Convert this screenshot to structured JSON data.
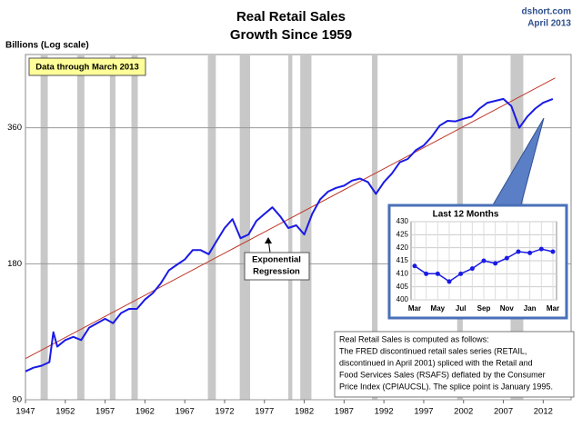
{
  "chart_data": [
    {
      "type": "line",
      "title": "Real Retail Sales",
      "subtitle": "Growth Since 1959",
      "source": [
        "dshort.com",
        "April 2013"
      ],
      "y_label": "Billions (Log scale)",
      "badge": "Data through March 2013",
      "regression_label": [
        "Exponential",
        "Regression"
      ],
      "note": [
        "Real Retail Sales is computed as follows:",
        "The FRED discontinued retail sales series (RETAIL,",
        "discontinued in April 2001) spliced with the Retail and",
        "Food Services Sales (RSAFS) deflated by the Consumer",
        "Price Index (CPIAUCSL). The splice point is January 1995."
      ],
      "log_scale": true,
      "xlim": [
        1947,
        2015.5
      ],
      "xticks": [
        1947,
        1952,
        1957,
        1962,
        1967,
        1972,
        1977,
        1982,
        1987,
        1992,
        1997,
        2002,
        2007,
        2012
      ],
      "ylim": [
        90,
        523
      ],
      "yticks": [
        90,
        180,
        360
      ],
      "grid": true,
      "shaded_ranges": [
        [
          1948.9,
          1949.8
        ],
        [
          1953.5,
          1954.4
        ],
        [
          1957.6,
          1958.3
        ],
        [
          1960.3,
          1961.1
        ],
        [
          1969.9,
          1970.9
        ],
        [
          1973.9,
          1975.2
        ],
        [
          1980.0,
          1980.5
        ],
        [
          1981.5,
          1982.9
        ],
        [
          1990.5,
          1991.2
        ],
        [
          2001.2,
          2001.9
        ],
        [
          2007.9,
          2009.5
        ]
      ],
      "shade_color": "#c8c8c8",
      "x": [
        1947,
        1948,
        1949,
        1950,
        1950.5,
        1951,
        1952,
        1953,
        1954,
        1955,
        1956,
        1957,
        1958,
        1959,
        1960,
        1961,
        1962,
        1963,
        1964,
        1965,
        1966,
        1967,
        1968,
        1969,
        1970,
        1971,
        1972,
        1973,
        1974,
        1975,
        1976,
        1977,
        1978,
        1979,
        1980,
        1981,
        1982,
        1983,
        1984,
        1985,
        1986,
        1987,
        1988,
        1989,
        1990,
        1991,
        1992,
        1993,
        1994,
        1995,
        1996,
        1997,
        1998,
        1999,
        2000,
        2001,
        2002,
        2003,
        2004,
        2005,
        2006,
        2007,
        2008,
        2009,
        2010,
        2011,
        2012,
        2013.2
      ],
      "series": [
        {
          "name": "Real Retail Sales",
          "color": "#1a1ae6",
          "values": [
            104,
            106,
            107,
            109,
            127,
            118,
            122,
            124,
            122,
            130,
            133,
            136,
            133,
            140,
            143,
            143,
            150,
            155,
            163,
            174,
            179,
            184,
            193,
            193,
            189,
            202,
            216,
            226,
            205,
            209,
            224,
            232,
            240,
            229,
            216,
            219,
            209,
            232,
            250,
            260,
            265,
            268,
            275,
            278,
            273,
            257,
            273,
            285,
            302,
            307,
            321,
            329,
            344,
            364,
            373,
            372,
            377,
            381,
            397,
            409,
            413,
            417,
            402,
            360,
            381,
            397,
            409,
            417
          ]
        }
      ],
      "regression": {
        "color": "#c0392b",
        "x": [
          1947,
          2013.5
        ],
        "values": [
          111,
          464
        ]
      }
    },
    {
      "type": "line",
      "title": "Last 12 Months",
      "categories": [
        "Mar",
        null,
        "May",
        null,
        "Jul",
        null,
        "Sep",
        null,
        "Nov",
        null,
        "Jan",
        null,
        "Mar"
      ],
      "values": [
        413,
        410,
        410,
        407,
        410,
        412,
        415,
        414,
        416,
        418.5,
        418,
        419.5,
        418.5
      ],
      "color": "#1a1ae6",
      "ylim": [
        400,
        430
      ],
      "yticks": [
        400,
        405,
        410,
        415,
        420,
        425,
        430
      ],
      "grid": true
    }
  ]
}
